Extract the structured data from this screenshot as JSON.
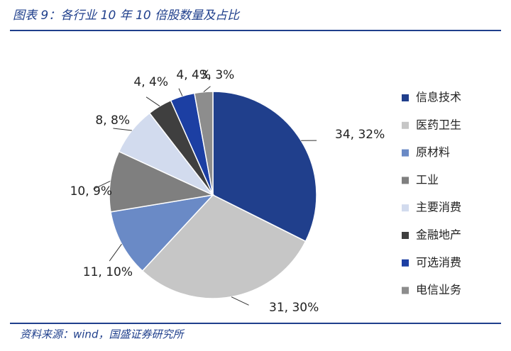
{
  "chart_data": {
    "type": "pie",
    "title": "图表 9：各行业 10 年 10 倍股数量及占比",
    "source": "资料来源：wind，国盛证券研究所",
    "categories": [
      "信息技术",
      "医药卫生",
      "原材料",
      "工业",
      "主要消费",
      "金融地产",
      "可选消费",
      "电信业务"
    ],
    "values": [
      34,
      31,
      11,
      10,
      8,
      4,
      4,
      3
    ],
    "value_labels": [
      "34, 32%",
      "31, 30%",
      "11, 10%",
      "10, 9%",
      "8, 8%",
      "4, 4%",
      "4, 4%",
      "3, 3%"
    ],
    "colors": [
      "#203f8c",
      "#c6c6c6",
      "#6a8ac6",
      "#7f7f7f",
      "#d2dbee",
      "#3f3f3f",
      "#1c3fa3",
      "#8d8d8d"
    ],
    "legend": "right"
  }
}
